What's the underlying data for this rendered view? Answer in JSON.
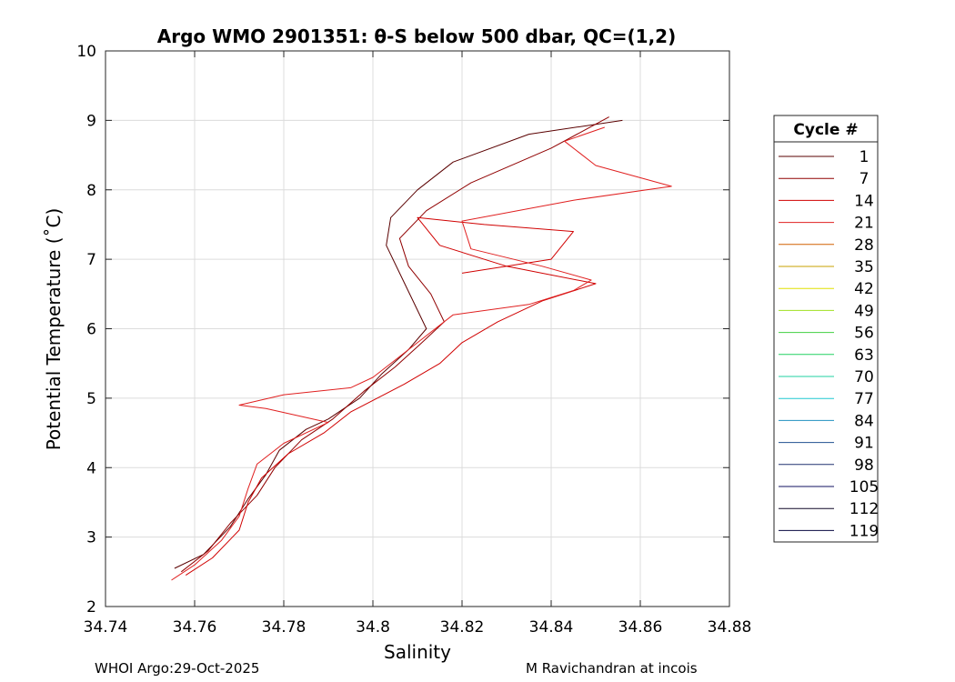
{
  "chart_data": {
    "type": "line",
    "title": "Argo WMO 2901351: θ-S below 500 dbar,  QC=(1,2)",
    "xlabel": "Salinity",
    "ylabel": "Potential Temperature (˚C)",
    "xlim": [
      34.74,
      34.88
    ],
    "ylim": [
      2,
      10
    ],
    "grid": true,
    "x_ticks": [
      "34.74",
      "34.76",
      "34.78",
      "34.8",
      "34.82",
      "34.84",
      "34.86",
      "34.88"
    ],
    "y_ticks": [
      "2",
      "3",
      "4",
      "5",
      "6",
      "7",
      "8",
      "9",
      "10"
    ],
    "legend": {
      "title": "Cycle #",
      "placement": "right-outside",
      "entries": [
        {
          "label": "1",
          "color": "#5a0000"
        },
        {
          "label": "7",
          "color": "#900000"
        },
        {
          "label": "14",
          "color": "#d00000"
        },
        {
          "label": "21",
          "color": "#e02020"
        },
        {
          "label": "28",
          "color": "#d06000"
        },
        {
          "label": "35",
          "color": "#c8a000"
        },
        {
          "label": "42",
          "color": "#e0e000"
        },
        {
          "label": "49",
          "color": "#a0e020"
        },
        {
          "label": "56",
          "color": "#40d040"
        },
        {
          "label": "63",
          "color": "#20d060"
        },
        {
          "label": "70",
          "color": "#20d0a0"
        },
        {
          "label": "77",
          "color": "#20c8d0"
        },
        {
          "label": "84",
          "color": "#2090c0"
        },
        {
          "label": "91",
          "color": "#205090"
        },
        {
          "label": "98",
          "color": "#203070"
        },
        {
          "label": "105",
          "color": "#101060"
        },
        {
          "label": "112",
          "color": "#100828"
        },
        {
          "label": "119",
          "color": "#080840"
        }
      ]
    },
    "series": [
      {
        "name": "1",
        "color": "#5a0000",
        "points": [
          [
            34.7555,
            2.55
          ],
          [
            34.762,
            2.75
          ],
          [
            34.768,
            3.15
          ],
          [
            34.772,
            3.55
          ],
          [
            34.776,
            3.9
          ],
          [
            34.779,
            4.25
          ],
          [
            34.785,
            4.55
          ],
          [
            34.79,
            4.7
          ],
          [
            34.797,
            5.0
          ],
          [
            34.802,
            5.35
          ],
          [
            34.808,
            5.7
          ],
          [
            34.812,
            6.0
          ],
          [
            34.809,
            6.4
          ],
          [
            34.806,
            6.8
          ],
          [
            34.803,
            7.2
          ],
          [
            34.804,
            7.6
          ],
          [
            34.81,
            8.0
          ],
          [
            34.818,
            8.4
          ],
          [
            34.835,
            8.8
          ],
          [
            34.856,
            9.0
          ]
        ]
      },
      {
        "name": "7",
        "color": "#900000",
        "points": [
          [
            34.757,
            2.5
          ],
          [
            34.763,
            2.8
          ],
          [
            34.768,
            3.2
          ],
          [
            34.774,
            3.6
          ],
          [
            34.778,
            4.0
          ],
          [
            34.784,
            4.4
          ],
          [
            34.791,
            4.7
          ],
          [
            34.798,
            5.1
          ],
          [
            34.805,
            5.45
          ],
          [
            34.811,
            5.8
          ],
          [
            34.816,
            6.1
          ],
          [
            34.813,
            6.5
          ],
          [
            34.808,
            6.9
          ],
          [
            34.806,
            7.3
          ],
          [
            34.812,
            7.7
          ],
          [
            34.822,
            8.1
          ],
          [
            34.84,
            8.6
          ],
          [
            34.853,
            9.05
          ]
        ]
      },
      {
        "name": "14",
        "color": "#d00000",
        "points": [
          [
            34.758,
            2.45
          ],
          [
            34.764,
            2.7
          ],
          [
            34.77,
            3.1
          ],
          [
            34.772,
            3.5
          ],
          [
            34.775,
            3.85
          ],
          [
            34.781,
            4.2
          ],
          [
            34.789,
            4.5
          ],
          [
            34.795,
            4.8
          ],
          [
            34.807,
            5.2
          ],
          [
            34.815,
            5.5
          ],
          [
            34.82,
            5.8
          ],
          [
            34.828,
            6.1
          ],
          [
            34.838,
            6.4
          ],
          [
            34.85,
            6.65
          ],
          [
            34.83,
            6.9
          ],
          [
            34.815,
            7.2
          ],
          [
            34.81,
            7.6
          ],
          [
            34.825,
            7.5
          ],
          [
            34.845,
            7.4
          ],
          [
            34.84,
            7.0
          ],
          [
            34.82,
            6.8
          ]
        ]
      },
      {
        "name": "21",
        "color": "#e02020",
        "points": [
          [
            34.7548,
            2.38
          ],
          [
            34.76,
            2.6
          ],
          [
            34.766,
            2.95
          ],
          [
            34.77,
            3.3
          ],
          [
            34.772,
            3.7
          ],
          [
            34.774,
            4.05
          ],
          [
            34.78,
            4.35
          ],
          [
            34.79,
            4.65
          ],
          [
            34.776,
            4.85
          ],
          [
            34.77,
            4.9
          ],
          [
            34.78,
            5.05
          ],
          [
            34.795,
            5.15
          ],
          [
            34.8,
            5.3
          ],
          [
            34.806,
            5.6
          ],
          [
            34.812,
            5.9
          ],
          [
            34.818,
            6.2
          ],
          [
            34.835,
            6.35
          ],
          [
            34.845,
            6.55
          ],
          [
            34.849,
            6.7
          ],
          [
            34.838,
            6.9
          ],
          [
            34.822,
            7.15
          ],
          [
            34.82,
            7.55
          ],
          [
            34.845,
            7.85
          ],
          [
            34.867,
            8.05
          ],
          [
            34.85,
            8.35
          ],
          [
            34.843,
            8.7
          ],
          [
            34.852,
            8.9
          ]
        ]
      }
    ]
  },
  "footer": {
    "left": "WHOI Argo:29-Oct-2025",
    "right": "M Ravichandran at incois"
  }
}
